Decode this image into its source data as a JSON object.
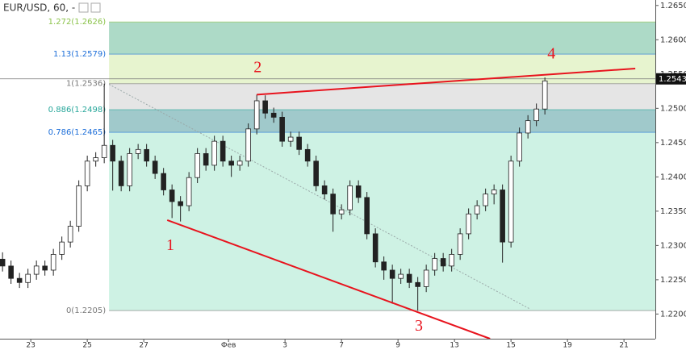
{
  "chart_data": {
    "type": "candlestick",
    "title": "EUR/USD, 60, -",
    "xlim": [
      -1.09,
      22.11
    ],
    "ylim": [
      1.2164,
      1.2658
    ],
    "xticks": [
      {
        "value": 0,
        "label": "23"
      },
      {
        "value": 2,
        "label": "25"
      },
      {
        "value": 4,
        "label": "27"
      },
      {
        "value": 7,
        "label": "Фев"
      },
      {
        "value": 9,
        "label": "3"
      },
      {
        "value": 11,
        "label": "7"
      },
      {
        "value": 13,
        "label": "9"
      },
      {
        "value": 15,
        "label": "13"
      },
      {
        "value": 17,
        "label": "15"
      },
      {
        "value": 19,
        "label": "19"
      },
      {
        "value": 21,
        "label": "21"
      }
    ],
    "yticks": [
      {
        "value": 1.265,
        "label": "1.2650"
      },
      {
        "value": 1.26,
        "label": "1.2600"
      },
      {
        "value": 1.255,
        "label": "1.2550"
      },
      {
        "value": 1.25,
        "label": "1.2500"
      },
      {
        "value": 1.245,
        "label": "1.2450"
      },
      {
        "value": 1.24,
        "label": "1.2400"
      },
      {
        "value": 1.235,
        "label": "1.2350"
      },
      {
        "value": 1.23,
        "label": "1.2300"
      },
      {
        "value": 1.225,
        "label": "1.2250"
      },
      {
        "value": 1.22,
        "label": "1.2200"
      }
    ],
    "grid": false,
    "up_color": "#ffffff",
    "down_color": "#222222",
    "wick_color": "#222222",
    "x": [
      -1.0,
      -0.7,
      -0.4,
      -0.1,
      0.2,
      0.5,
      0.8,
      1.1,
      1.4,
      1.7,
      2.0,
      2.3,
      2.6,
      2.9,
      3.2,
      3.5,
      3.8,
      4.1,
      4.4,
      4.7,
      5.0,
      5.3,
      5.6,
      5.9,
      6.2,
      6.5,
      6.8,
      7.1,
      7.4,
      7.7,
      8.0,
      8.3,
      8.6,
      8.9,
      9.2,
      9.5,
      9.8,
      10.1,
      10.4,
      10.7,
      11.0,
      11.3,
      11.6,
      11.9,
      12.2,
      12.5,
      12.8,
      13.1,
      13.4,
      13.7,
      14.0,
      14.3,
      14.6,
      14.9,
      15.2,
      15.5,
      15.8,
      16.1,
      16.4,
      16.7,
      17.0,
      17.3,
      17.6,
      17.9,
      18.2
    ],
    "open": [
      1.228,
      1.227,
      1.2252,
      1.2246,
      1.2258,
      1.227,
      1.2264,
      1.2287,
      1.2305,
      1.2328,
      1.2387,
      1.2423,
      1.2428,
      1.2446,
      1.2423,
      1.2387,
      1.2434,
      1.244,
      1.2423,
      1.2405,
      1.2381,
      1.2364,
      1.2358,
      1.2399,
      1.2434,
      1.2417,
      1.2452,
      1.2423,
      1.2417,
      1.2423,
      1.247,
      1.2511,
      1.2493,
      1.2487,
      1.2452,
      1.2458,
      1.244,
      1.2423,
      1.2387,
      1.2375,
      1.2346,
      1.2352,
      1.2387,
      1.237,
      1.2317,
      1.2276,
      1.2264,
      1.2252,
      1.2258,
      1.2246,
      1.224,
      1.2264,
      1.2281,
      1.227,
      1.2287,
      1.2317,
      1.2346,
      1.2358,
      1.2375,
      1.2381,
      1.2305,
      1.2423,
      1.2464,
      1.2482,
      1.2499
    ],
    "high": [
      1.229,
      1.2278,
      1.226,
      1.2266,
      1.2278,
      1.2278,
      1.2295,
      1.2313,
      1.2336,
      1.2395,
      1.2431,
      1.2436,
      1.2536,
      1.2454,
      1.2431,
      1.2442,
      1.2448,
      1.2448,
      1.2431,
      1.2413,
      1.2389,
      1.2372,
      1.2407,
      1.2442,
      1.2442,
      1.246,
      1.246,
      1.2431,
      1.2431,
      1.2478,
      1.252,
      1.2519,
      1.2501,
      1.2495,
      1.2466,
      1.2466,
      1.2448,
      1.2431,
      1.2395,
      1.2383,
      1.236,
      1.2395,
      1.2395,
      1.2378,
      1.2325,
      1.2284,
      1.2272,
      1.2266,
      1.2266,
      1.2254,
      1.2272,
      1.2289,
      1.2289,
      1.2295,
      1.2325,
      1.2354,
      1.2366,
      1.2383,
      1.2389,
      1.2389,
      1.2431,
      1.2472,
      1.249,
      1.2507,
      1.2545
    ],
    "low": [
      1.2262,
      1.2244,
      1.2238,
      1.2238,
      1.225,
      1.2256,
      1.2256,
      1.2279,
      1.2297,
      1.232,
      1.2379,
      1.2415,
      1.242,
      1.238,
      1.2379,
      1.2379,
      1.2426,
      1.2415,
      1.2397,
      1.2373,
      1.234,
      1.2335,
      1.235,
      1.2391,
      1.2409,
      1.2409,
      1.2415,
      1.24,
      1.2409,
      1.2415,
      1.2462,
      1.2485,
      1.2479,
      1.2444,
      1.2444,
      1.2432,
      1.2415,
      1.2379,
      1.2367,
      1.232,
      1.2338,
      1.2344,
      1.2362,
      1.2309,
      1.2268,
      1.225,
      1.2215,
      1.2244,
      1.2238,
      1.2205,
      1.2232,
      1.2256,
      1.2262,
      1.2262,
      1.2279,
      1.2309,
      1.2338,
      1.235,
      1.236,
      1.2275,
      1.2297,
      1.2415,
      1.2456,
      1.2474,
      1.2491
    ],
    "close": [
      1.227,
      1.2252,
      1.2246,
      1.2258,
      1.227,
      1.2264,
      1.2287,
      1.2305,
      1.2328,
      1.2387,
      1.2423,
      1.2428,
      1.2446,
      1.2423,
      1.2387,
      1.2434,
      1.244,
      1.2423,
      1.2405,
      1.2381,
      1.2364,
      1.2358,
      1.2399,
      1.2434,
      1.2417,
      1.2452,
      1.2423,
      1.2417,
      1.2423,
      1.247,
      1.2511,
      1.2493,
      1.2487,
      1.2452,
      1.2458,
      1.244,
      1.2423,
      1.2387,
      1.2375,
      1.2346,
      1.2352,
      1.2387,
      1.237,
      1.2317,
      1.2276,
      1.2264,
      1.2252,
      1.2258,
      1.2246,
      1.224,
      1.2264,
      1.2281,
      1.227,
      1.2287,
      1.2317,
      1.2346,
      1.2358,
      1.2375,
      1.2381,
      1.2305,
      1.2423,
      1.2464,
      1.2482,
      1.2499,
      1.254
    ],
    "fib_start": 2.77,
    "fib_levels": [
      {
        "label": "1.272(1.2626)",
        "value": 1.2626,
        "color": "#8bc34a",
        "fill": "#9fd3bd"
      },
      {
        "label": "1.13(1.2579)",
        "value": 1.2579,
        "color": "#1e6fd9",
        "fill": "#e3f2c7"
      },
      {
        "label": "1(1.2536)",
        "value": 1.2536,
        "color": "#787878",
        "fill": "#e0e0e0"
      },
      {
        "label": "0.886(1.2498)",
        "value": 1.2498,
        "color": "#26a69a",
        "fill": "#8fbfc2"
      },
      {
        "label": "0.786(1.2465)",
        "value": 1.2465,
        "color": "#1e6fd9",
        "fill": "#c6f0df"
      },
      {
        "label": "0(1.2205)",
        "value": 1.2205,
        "color": "#787878"
      }
    ],
    "trendlines": [
      {
        "x": [
          4.83,
          16.26
        ],
        "y": [
          1.2337,
          1.2164
        ],
        "color": "#e8141e"
      },
      {
        "x": [
          8.0,
          21.4
        ],
        "y": [
          1.252,
          1.2558
        ],
        "color": "#e8141e"
      }
    ],
    "diagonal": {
      "x": [
        2.77,
        17.69
      ],
      "y": [
        1.2535,
        1.2207
      ],
      "color": "#9aa8a8"
    },
    "annotations": [
      {
        "text": "1",
        "x": 4.94,
        "y": 1.2299
      },
      {
        "text": "2",
        "x": 8.03,
        "y": 1.2558
      },
      {
        "text": "3",
        "x": 13.74,
        "y": 1.2181
      },
      {
        "text": "4",
        "x": 18.43,
        "y": 1.2578
      }
    ],
    "annotation_color": "#e8141e",
    "current_price": 1.2543
  }
}
